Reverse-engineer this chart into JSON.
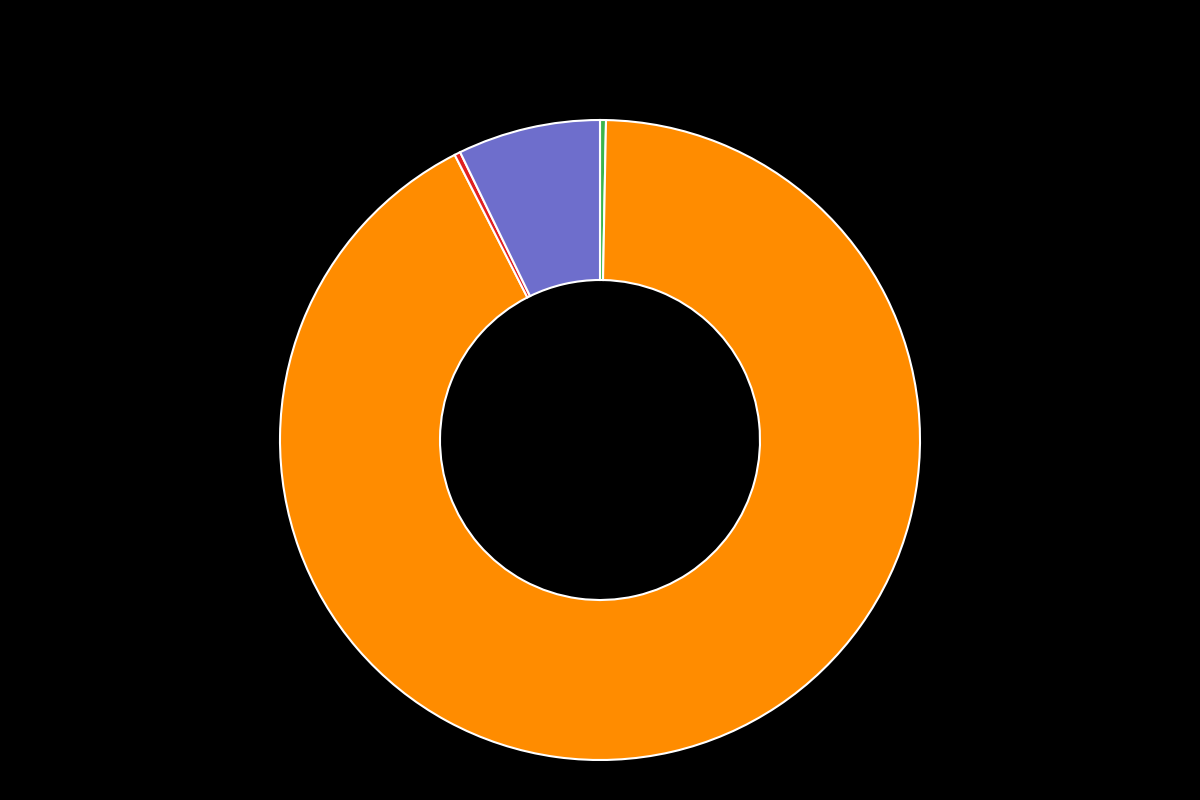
{
  "values": [
    0.3,
    92.2,
    0.3,
    7.2
  ],
  "colors": [
    "#3cb54a",
    "#ff8c00",
    "#e02020",
    "#6e6ecc"
  ],
  "legend_labels": [
    "",
    "",
    "",
    ""
  ],
  "background_color": "#000000",
  "wedge_line_color": "#ffffff",
  "wedge_linewidth": 1.5,
  "donut_ratio": 0.5,
  "startangle": 90,
  "figsize": [
    12,
    8
  ]
}
